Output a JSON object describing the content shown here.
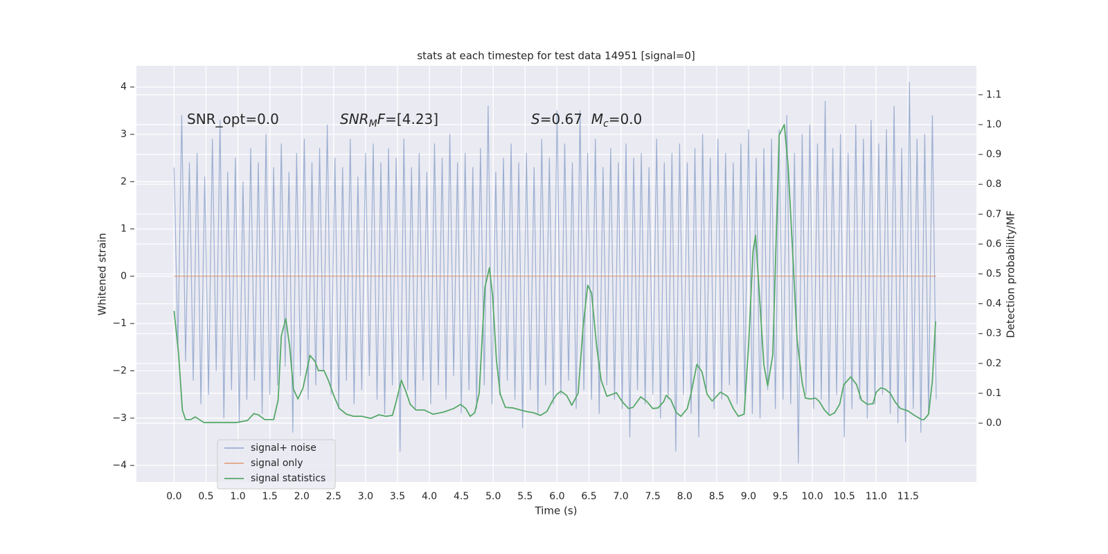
{
  "chart_data": {
    "type": "line",
    "title": "stats at each timestep for test data 14951 [signal=0]",
    "x_label": "Time (s)",
    "y_label": "Whitened strain",
    "y2_label": "Detection probability/MF",
    "xlim": [
      -0.59,
      12.57
    ],
    "ylim": [
      -4.35,
      4.45
    ],
    "y2lim": [
      -0.197,
      1.197
    ],
    "xticks": [
      {
        "value": 0,
        "label": "0.0"
      },
      {
        "value": 0.5,
        "label": "0.5"
      },
      {
        "value": 1,
        "label": "1.0"
      },
      {
        "value": 1.5,
        "label": "1.5"
      },
      {
        "value": 2,
        "label": "2.0"
      },
      {
        "value": 2.5,
        "label": "2.5"
      },
      {
        "value": 3,
        "label": "3.0"
      },
      {
        "value": 3.5,
        "label": "3.5"
      },
      {
        "value": 4,
        "label": "4.0"
      },
      {
        "value": 4.5,
        "label": "4.5"
      },
      {
        "value": 5,
        "label": "5.0"
      },
      {
        "value": 5.5,
        "label": "5.5"
      },
      {
        "value": 6,
        "label": "6.0"
      },
      {
        "value": 6.5,
        "label": "6.5"
      },
      {
        "value": 7,
        "label": "7.0"
      },
      {
        "value": 7.5,
        "label": "7.5"
      },
      {
        "value": 8,
        "label": "8.0"
      },
      {
        "value": 8.5,
        "label": "8.5"
      },
      {
        "value": 9,
        "label": "9.0"
      },
      {
        "value": 9.5,
        "label": "9.5"
      },
      {
        "value": 10,
        "label": "10.0"
      },
      {
        "value": 10.5,
        "label": "10.5"
      },
      {
        "value": 11,
        "label": "11.0"
      },
      {
        "value": 11.5,
        "label": "11.5"
      }
    ],
    "yticks": [
      {
        "value": -4,
        "label": "−4"
      },
      {
        "value": -3,
        "label": "−3"
      },
      {
        "value": -2,
        "label": "−2"
      },
      {
        "value": -1,
        "label": "−1"
      },
      0,
      1,
      2,
      3,
      4
    ],
    "y2ticks": [
      {
        "value": 0,
        "label": "0.0"
      },
      {
        "value": 0.1,
        "label": "0.1"
      },
      {
        "value": 0.2,
        "label": "0.2"
      },
      {
        "value": 0.3,
        "label": "0.3"
      },
      {
        "value": 0.4,
        "label": "0.4"
      },
      {
        "value": 0.5,
        "label": "0.5"
      },
      {
        "value": 0.6,
        "label": "0.6"
      },
      {
        "value": 0.7,
        "label": "0.7"
      },
      {
        "value": 0.8,
        "label": "0.8"
      },
      {
        "value": 0.9,
        "label": "0.9"
      },
      {
        "value": 1,
        "label": "1.0"
      },
      {
        "value": 1.1,
        "label": "1.1"
      }
    ],
    "grid": true,
    "legend": "lower left",
    "annotations": [
      [
        {
          "text": "SNR_opt=0.0",
          "style": "roman"
        }
      ],
      [
        {
          "text": "SNR",
          "style": "italic"
        },
        {
          "text": "M",
          "style": "italic-sub"
        },
        {
          "text": "F",
          "style": "italic"
        },
        {
          "text": "=[4.23]",
          "style": "roman"
        }
      ],
      [
        {
          "text": "S",
          "style": "italic"
        },
        {
          "text": "=0.67  ",
          "style": "roman"
        },
        {
          "text": "M",
          "style": "italic"
        },
        {
          "text": "c",
          "style": "italic-sub"
        },
        {
          "text": "=0.0",
          "style": "roman"
        }
      ]
    ],
    "series": [
      {
        "name": "signal+ noise",
        "color": "#4c72b0",
        "opacity": 0.5,
        "x": [
          0,
          0.06,
          0.12,
          0.18,
          0.24,
          0.3,
          0.36,
          0.42,
          0.48,
          0.54,
          0.6,
          0.66,
          0.72,
          0.78,
          0.84,
          0.9,
          0.96,
          1.02,
          1.08,
          1.14,
          1.2,
          1.26,
          1.32,
          1.38,
          1.44,
          1.5,
          1.56,
          1.62,
          1.68,
          1.74,
          1.8,
          1.86,
          1.92,
          1.98,
          2.04,
          2.1,
          2.16,
          2.22,
          2.28,
          2.34,
          2.4,
          2.46,
          2.52,
          2.58,
          2.64,
          2.7,
          2.76,
          2.82,
          2.88,
          2.94,
          3.0,
          3.06,
          3.12,
          3.18,
          3.24,
          3.3,
          3.36,
          3.42,
          3.48,
          3.54,
          3.6,
          3.66,
          3.72,
          3.78,
          3.84,
          3.9,
          3.96,
          4.02,
          4.08,
          4.14,
          4.2,
          4.26,
          4.32,
          4.38,
          4.44,
          4.5,
          4.56,
          4.62,
          4.68,
          4.74,
          4.8,
          4.86,
          4.92,
          4.98,
          5.04,
          5.1,
          5.16,
          5.22,
          5.28,
          5.34,
          5.4,
          5.46,
          5.52,
          5.58,
          5.64,
          5.7,
          5.76,
          5.82,
          5.88,
          5.94,
          6.0,
          6.06,
          6.12,
          6.18,
          6.24,
          6.3,
          6.36,
          6.42,
          6.48,
          6.54,
          6.6,
          6.66,
          6.72,
          6.78,
          6.84,
          6.9,
          6.96,
          7.02,
          7.08,
          7.14,
          7.2,
          7.26,
          7.32,
          7.38,
          7.44,
          7.5,
          7.56,
          7.62,
          7.68,
          7.74,
          7.8,
          7.86,
          7.92,
          7.98,
          8.04,
          8.1,
          8.16,
          8.22,
          8.28,
          8.34,
          8.4,
          8.46,
          8.52,
          8.58,
          8.64,
          8.7,
          8.76,
          8.82,
          8.88,
          8.94,
          9.0,
          9.06,
          9.12,
          9.18,
          9.24,
          9.3,
          9.36,
          9.42,
          9.48,
          9.54,
          9.6,
          9.66,
          9.72,
          9.78,
          9.84,
          9.9,
          9.96,
          10.02,
          10.08,
          10.14,
          10.2,
          10.26,
          10.32,
          10.38,
          10.44,
          10.5,
          10.56,
          10.62,
          10.68,
          10.74,
          10.8,
          10.86,
          10.92,
          10.98,
          11.04,
          11.1,
          11.16,
          11.22,
          11.28,
          11.34,
          11.4,
          11.46,
          11.52,
          11.58,
          11.64,
          11.7,
          11.76,
          11.82,
          11.88,
          11.94
        ],
        "values": [
          2.3,
          -1.5,
          3.4,
          -1.8,
          2.4,
          -2.2,
          2.6,
          -2.7,
          2.1,
          -2.5,
          2.9,
          -2.0,
          3.3,
          -3.0,
          2.2,
          -2.4,
          2.5,
          -3.1,
          2.0,
          -2.6,
          2.7,
          -2.2,
          2.4,
          -2.9,
          3.0,
          -2.5,
          2.3,
          -2.3,
          2.8,
          -1.9,
          2.2,
          -3.3,
          2.6,
          -2.1,
          2.9,
          -2.6,
          2.4,
          -2.3,
          2.7,
          -2.0,
          3.2,
          -2.5,
          2.5,
          -2.8,
          2.3,
          -2.2,
          2.9,
          -2.7,
          2.1,
          -2.4,
          2.6,
          -2.1,
          2.8,
          -2.6,
          2.4,
          -2.9,
          2.7,
          -2.3,
          2.5,
          -3.7,
          2.9,
          -2.4,
          2.3,
          -2.8,
          2.6,
          -2.2,
          2.2,
          -2.7,
          2.8,
          -2.3,
          2.5,
          -2.6,
          3.0,
          -2.1,
          2.4,
          -2.9,
          2.6,
          -2.4,
          2.3,
          -2.8,
          2.7,
          -2.3,
          3.6,
          -2.7,
          2.2,
          -2.5,
          2.5,
          -2.2,
          2.8,
          -2.6,
          2.4,
          -3.2,
          2.6,
          -2.4,
          2.3,
          -2.9,
          2.9,
          -2.3,
          2.5,
          -2.7,
          3.5,
          -2.5,
          2.8,
          -2.2,
          2.4,
          -2.8,
          3.5,
          -2.4,
          2.6,
          -2.6,
          2.9,
          -2.9,
          2.3,
          -2.3,
          2.7,
          -2.6,
          2.4,
          -2.8,
          2.8,
          -3.4,
          2.5,
          -2.4,
          2.6,
          -2.7,
          2.3,
          -2.5,
          2.9,
          -3.0,
          2.4,
          -2.6,
          2.6,
          -3.7,
          2.8,
          -2.5,
          2.4,
          -2.9,
          2.7,
          -3.4,
          3.0,
          -2.4,
          2.5,
          -2.8,
          2.9,
          -2.6,
          2.6,
          -2.3,
          2.4,
          -2.7,
          2.8,
          -2.5,
          3.1,
          -2.9,
          2.5,
          -3.0,
          2.7,
          -2.4,
          2.9,
          -2.8,
          3.1,
          -2.6,
          3.4,
          -2.7,
          2.6,
          -3.95,
          3.0,
          -2.5,
          3.2,
          -2.8,
          2.8,
          -2.6,
          3.7,
          -2.9,
          2.7,
          -2.5,
          3.0,
          -3.4,
          2.6,
          -2.8,
          3.2,
          -2.6,
          2.9,
          -3.0,
          3.3,
          -2.7,
          2.8,
          -2.5,
          3.1,
          -2.9,
          3.6,
          -3.1,
          2.7,
          -3.5,
          4.1,
          -2.8,
          2.9,
          -3.3,
          3.0,
          -2.9,
          3.4,
          -2.6
        ]
      },
      {
        "name": "signal only",
        "color": "#dd8452",
        "opacity": 0.7,
        "x": [
          0,
          11.94
        ],
        "values": [
          0,
          0
        ]
      },
      {
        "name": "signal statistics",
        "color": "#55a868",
        "opacity": 1,
        "axis": "y2",
        "x": [
          0,
          0.07,
          0.13,
          0.18,
          0.26,
          0.33,
          0.47,
          0.75,
          0.97,
          1.15,
          1.25,
          1.32,
          1.42,
          1.56,
          1.63,
          1.68,
          1.75,
          1.81,
          1.87,
          1.94,
          2.02,
          2.13,
          2.21,
          2.26,
          2.35,
          2.42,
          2.51,
          2.59,
          2.7,
          2.81,
          2.94,
          3.08,
          3.21,
          3.32,
          3.42,
          3.48,
          3.56,
          3.63,
          3.7,
          3.79,
          3.92,
          4.06,
          4.22,
          4.38,
          4.49,
          4.57,
          4.64,
          4.71,
          4.78,
          4.87,
          4.94,
          4.99,
          5.05,
          5.11,
          5.19,
          5.31,
          5.43,
          5.52,
          5.63,
          5.74,
          5.84,
          5.92,
          5.99,
          6.06,
          6.15,
          6.23,
          6.33,
          6.41,
          6.48,
          6.54,
          6.62,
          6.69,
          6.78,
          6.93,
          7.02,
          7.12,
          7.19,
          7.31,
          7.41,
          7.5,
          7.58,
          7.67,
          7.71,
          7.78,
          7.87,
          7.94,
          8.04,
          8.1,
          8.19,
          8.27,
          8.35,
          8.43,
          8.56,
          8.67,
          8.76,
          8.84,
          8.93,
          9.0,
          9.07,
          9.11,
          9.18,
          9.24,
          9.3,
          9.38,
          9.48,
          9.56,
          9.62,
          9.7,
          9.76,
          9.84,
          9.89,
          9.97,
          10.05,
          10.11,
          10.19,
          10.27,
          10.35,
          10.43,
          10.49,
          10.6,
          10.69,
          10.77,
          10.86,
          10.95,
          11.0,
          11.07,
          11.14,
          11.22,
          11.3,
          11.38,
          11.49,
          11.6,
          11.71,
          11.75,
          11.82,
          11.88,
          11.93
        ],
        "values": [
          0.376,
          0.234,
          0.044,
          0.012,
          0.012,
          0.021,
          0.002,
          0.002,
          0.002,
          0.009,
          0.032,
          0.028,
          0.012,
          0.012,
          0.077,
          0.292,
          0.35,
          0.258,
          0.114,
          0.081,
          0.118,
          0.227,
          0.206,
          0.176,
          0.176,
          0.142,
          0.088,
          0.049,
          0.03,
          0.023,
          0.023,
          0.016,
          0.028,
          0.023,
          0.026,
          0.072,
          0.144,
          0.107,
          0.063,
          0.044,
          0.044,
          0.03,
          0.037,
          0.049,
          0.063,
          0.049,
          0.023,
          0.035,
          0.1,
          0.455,
          0.52,
          0.427,
          0.211,
          0.097,
          0.053,
          0.051,
          0.044,
          0.039,
          0.035,
          0.026,
          0.039,
          0.072,
          0.095,
          0.107,
          0.093,
          0.06,
          0.1,
          0.327,
          0.462,
          0.436,
          0.258,
          0.144,
          0.09,
          0.102,
          0.072,
          0.049,
          0.053,
          0.088,
          0.072,
          0.049,
          0.051,
          0.072,
          0.093,
          0.079,
          0.035,
          0.023,
          0.049,
          0.1,
          0.197,
          0.172,
          0.097,
          0.074,
          0.104,
          0.09,
          0.049,
          0.023,
          0.03,
          0.258,
          0.575,
          0.629,
          0.397,
          0.195,
          0.125,
          0.23,
          0.965,
          1.0,
          0.861,
          0.536,
          0.281,
          0.135,
          0.084,
          0.081,
          0.084,
          0.072,
          0.044,
          0.026,
          0.035,
          0.065,
          0.128,
          0.155,
          0.13,
          0.077,
          0.063,
          0.065,
          0.104,
          0.118,
          0.114,
          0.1,
          0.07,
          0.049,
          0.042,
          0.026,
          0.012,
          0.012,
          0.03,
          0.142,
          0.341
        ]
      }
    ]
  }
}
